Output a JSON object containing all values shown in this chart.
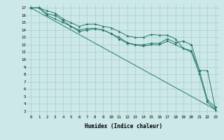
{
  "background_color": "#cce8e8",
  "grid_color": "#aacccc",
  "line_color": "#2a7a6a",
  "xlabel": "Humidex (Indice chaleur)",
  "xlim": [
    -0.5,
    23.5
  ],
  "ylim": [
    2.5,
    17.5
  ],
  "lines": [
    {
      "x": [
        0,
        1,
        2,
        3,
        4,
        5,
        6,
        7,
        8,
        9,
        10,
        11,
        12,
        13,
        14,
        15,
        16,
        17,
        18,
        19,
        20,
        21,
        22,
        23
      ],
      "y": [
        17,
        17,
        16.6,
        16.3,
        15.5,
        15.0,
        14.5,
        14.8,
        14.8,
        14.5,
        14.3,
        13.8,
        13.2,
        13.0,
        13.0,
        13.4,
        13.3,
        13.3,
        12.8,
        11.5,
        11.2,
        8.5,
        8.5,
        3.2
      ],
      "marker": "^",
      "markersize": 2.0
    },
    {
      "x": [
        0,
        1,
        2,
        3,
        4,
        5,
        6,
        7,
        8,
        9,
        10,
        11,
        12,
        13,
        14,
        15,
        16,
        17,
        18,
        19,
        20,
        21,
        22,
        23
      ],
      "y": [
        17,
        17,
        16.2,
        16.0,
        15.3,
        14.5,
        13.8,
        14.0,
        14.2,
        14.0,
        13.5,
        12.8,
        12.2,
        12.0,
        12.0,
        12.2,
        12.2,
        12.8,
        12.3,
        12.5,
        12.0,
        8.5,
        4.5,
        3.5
      ],
      "marker": "D",
      "markersize": 1.8
    },
    {
      "x": [
        0,
        1,
        2,
        3,
        4,
        5,
        6,
        7,
        8,
        9,
        10,
        11,
        12,
        13,
        14,
        15,
        16,
        17,
        18,
        19,
        20,
        21,
        22,
        23
      ],
      "y": [
        17,
        17,
        16.0,
        15.5,
        15.0,
        14.5,
        14.0,
        14.2,
        14.2,
        14.0,
        13.5,
        13.0,
        12.3,
        12.0,
        11.8,
        12.0,
        12.0,
        12.5,
        12.0,
        11.5,
        11.0,
        8.0,
        4.2,
        3.2
      ],
      "marker": "s",
      "markersize": 1.8
    },
    {
      "x": [
        0,
        23
      ],
      "y": [
        17,
        3.2
      ],
      "marker": null,
      "markersize": 0
    }
  ],
  "xtick_labels": [
    "0",
    "1",
    "2",
    "3",
    "4",
    "5",
    "6",
    "7",
    "8",
    "9",
    "10",
    "11",
    "12",
    "13",
    "14",
    "15",
    "16",
    "17",
    "18",
    "19",
    "20",
    "21",
    "22",
    "23"
  ],
  "ytick_values": [
    3,
    4,
    5,
    6,
    7,
    8,
    9,
    10,
    11,
    12,
    13,
    14,
    15,
    16,
    17
  ]
}
